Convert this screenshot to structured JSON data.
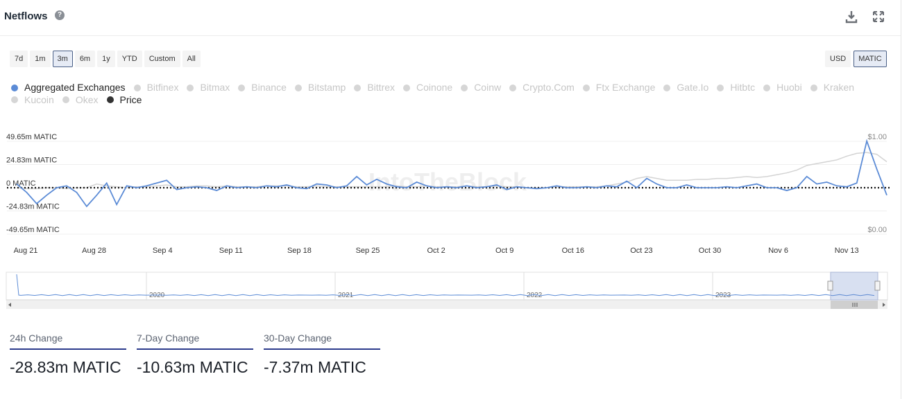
{
  "header": {
    "title": "Netflows",
    "help_icon": "question-circle-icon",
    "download_icon": "download-icon",
    "fullscreen_icon": "expand-icon"
  },
  "range_buttons": [
    "7d",
    "1m",
    "3m",
    "6m",
    "1y",
    "YTD",
    "Custom",
    "All"
  ],
  "range_selected": "3m",
  "unit_buttons": [
    "USD",
    "MATIC"
  ],
  "unit_selected": "MATIC",
  "legend": [
    {
      "label": "Aggregated Exchanges",
      "active": true,
      "color": "#5b8bd6"
    },
    {
      "label": "Bitfinex",
      "active": false
    },
    {
      "label": "Bitmax",
      "active": false
    },
    {
      "label": "Binance",
      "active": false
    },
    {
      "label": "Bitstamp",
      "active": false
    },
    {
      "label": "Bittrex",
      "active": false
    },
    {
      "label": "Coinone",
      "active": false
    },
    {
      "label": "Coinw",
      "active": false
    },
    {
      "label": "Crypto.Com",
      "active": false
    },
    {
      "label": "Ftx Exchange",
      "active": false
    },
    {
      "label": "Gate.Io",
      "active": false
    },
    {
      "label": "Hitbtc",
      "active": false
    },
    {
      "label": "Huobi",
      "active": false
    },
    {
      "label": "Kraken",
      "active": false
    },
    {
      "label": "Kucoin",
      "active": false
    },
    {
      "label": "Okex",
      "active": false
    },
    {
      "label": "Price",
      "active": true,
      "color": "#333333"
    }
  ],
  "watermark": "IntoTheBlock",
  "chart_data": {
    "type": "line",
    "y_left_labels": [
      "49.65m MATIC",
      "24.83m MATIC",
      "0 MATIC",
      "-24.83m MATIC",
      "-49.65m MATIC"
    ],
    "y_left_values": [
      49.65,
      24.83,
      0,
      -24.83,
      -49.65
    ],
    "y_right_labels": [
      "$1.00",
      "$0.00"
    ],
    "ylim_left": [
      -49.65,
      49.65
    ],
    "ylim_right": [
      0,
      1
    ],
    "x_labels": [
      "Aug 21",
      "Aug 28",
      "Sep 4",
      "Sep 11",
      "Sep 18",
      "Sep 25",
      "Oct 2",
      "Oct 9",
      "Oct 16",
      "Oct 23",
      "Oct 30",
      "Nov 6",
      "Nov 13"
    ],
    "series": [
      {
        "name": "Aggregated Exchanges",
        "color": "#5b8bd6",
        "axis": "left",
        "values": [
          4,
          -5,
          -17,
          -8,
          0,
          2,
          -5,
          -20,
          -8,
          5,
          -18,
          2,
          0,
          2,
          5,
          8,
          -2,
          0,
          1,
          0,
          -3,
          2,
          0,
          1,
          0,
          2,
          1,
          3,
          0,
          -1,
          4,
          3,
          0,
          2,
          12,
          3,
          9,
          4,
          1,
          0,
          6,
          2,
          0,
          1,
          0,
          2,
          0,
          1,
          3,
          -2,
          1,
          0,
          -1,
          0,
          2,
          0,
          0,
          1,
          0,
          2,
          1,
          7,
          0,
          10,
          4,
          0,
          0,
          3,
          0,
          0,
          0,
          1,
          0,
          2,
          4,
          0,
          0,
          -3,
          0,
          12,
          4,
          6,
          2,
          1,
          5,
          50,
          20,
          -8
        ]
      },
      {
        "name": "Price",
        "color": "#d3d3d3",
        "axis": "right",
        "values": [
          0.5,
          0.49,
          0.49,
          0.5,
          0.5,
          0.49,
          0.5,
          0.5,
          0.54,
          0.52,
          0.51,
          0.5,
          0.51,
          0.51,
          0.52,
          0.53,
          0.51,
          0.51,
          0.52,
          0.52,
          0.51,
          0.52,
          0.51,
          0.51,
          0.51,
          0.52,
          0.52,
          0.52,
          0.51,
          0.51,
          0.52,
          0.51,
          0.51,
          0.51,
          0.51,
          0.51,
          0.51,
          0.51,
          0.52,
          0.51,
          0.51,
          0.52,
          0.51,
          0.51,
          0.51,
          0.52,
          0.51,
          0.51,
          0.52,
          0.51,
          0.51,
          0.5,
          0.5,
          0.5,
          0.51,
          0.51,
          0.51,
          0.51,
          0.51,
          0.52,
          0.54,
          0.56,
          0.6,
          0.62,
          0.6,
          0.58,
          0.58,
          0.58,
          0.59,
          0.59,
          0.6,
          0.6,
          0.61,
          0.62,
          0.61,
          0.62,
          0.64,
          0.66,
          0.69,
          0.74,
          0.76,
          0.78,
          0.8,
          0.84,
          0.87,
          0.88,
          0.86,
          0.78
        ]
      }
    ],
    "baseline": 0,
    "navigator_labels": [
      "2020",
      "2021",
      "2022",
      "2023"
    ]
  },
  "stats": [
    {
      "label": "24h Change",
      "value": "-28.83m MATIC"
    },
    {
      "label": "7-Day Change",
      "value": "-10.63m MATIC"
    },
    {
      "label": "30-Day Change",
      "value": "-7.37m MATIC"
    }
  ]
}
